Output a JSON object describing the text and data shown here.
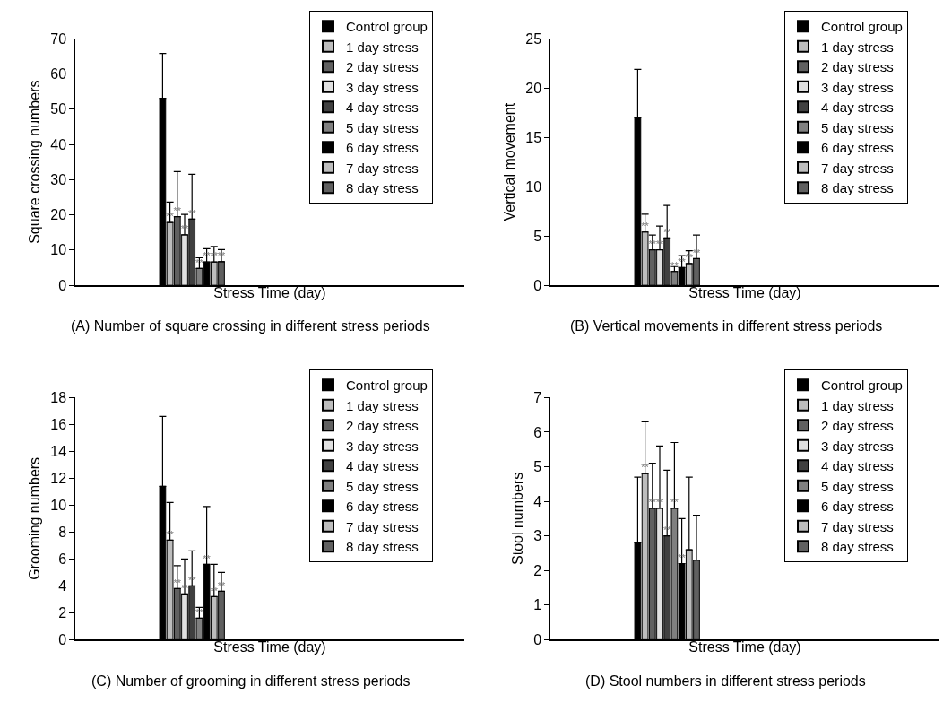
{
  "chart_data": [
    {
      "type": "bar",
      "title": "(A) Number of square crossing in different stress periods",
      "xlabel": "Stress Time (day)",
      "ylabel": "Square crossing numbers",
      "categories": [
        null
      ],
      "ylim": [
        0,
        70
      ],
      "yticks": [
        0,
        10,
        20,
        30,
        40,
        50,
        60,
        70
      ],
      "legend": "top right",
      "tick_labels": "y",
      "series": [
        {
          "name": "Control group",
          "color": "#000000",
          "values": [
            53.1
          ],
          "errors": [
            [
              53.1,
              65.8
            ]
          ],
          "value_labels": [
            null
          ]
        },
        {
          "name": "1 day stress",
          "color": "#bdbdbd",
          "values": [
            17.8
          ],
          "errors": [
            [
              17.8,
              23.6
            ]
          ],
          "value_labels": [
            "**"
          ]
        },
        {
          "name": "2 day stress",
          "color": "#606060",
          "values": [
            19.5
          ],
          "errors": [
            [
              19.5,
              32.3
            ]
          ],
          "value_labels": [
            "**"
          ]
        },
        {
          "name": "3 day stress",
          "color": "#e0e0e0",
          "values": [
            14.3
          ],
          "errors": [
            [
              14.3,
              20.1
            ]
          ],
          "value_labels": [
            "**"
          ]
        },
        {
          "name": "4 day stress",
          "color": "#404040",
          "values": [
            18.8
          ],
          "errors": [
            [
              18.8,
              31.5
            ]
          ],
          "value_labels": [
            "**"
          ]
        },
        {
          "name": "5 day stress",
          "color": "#808080",
          "values": [
            4.8
          ],
          "errors": [
            [
              4.8,
              7.8
            ]
          ],
          "value_labels": [
            "**"
          ]
        },
        {
          "name": "6 day stress",
          "color": "#000000",
          "values": [
            6.6
          ],
          "errors": [
            [
              6.6,
              10.4
            ]
          ],
          "value_labels": [
            "**"
          ]
        },
        {
          "name": "7 day stress",
          "color": "#bdbdbd",
          "values": [
            6.6
          ],
          "errors": [
            [
              6.6,
              11.0
            ]
          ],
          "value_labels": [
            "**"
          ]
        },
        {
          "name": "8 day stress",
          "color": "#606060",
          "values": [
            6.7
          ],
          "errors": [
            [
              6.7,
              10.1
            ]
          ],
          "value_labels": [
            "**"
          ]
        }
      ]
    },
    {
      "type": "bar",
      "title": "(B) Vertical movements in different stress periods",
      "xlabel": "Stress Time (day)",
      "ylabel": "Vertical movement",
      "categories": [
        null
      ],
      "ylim": [
        0,
        25
      ],
      "yticks": [
        0,
        5,
        10,
        15,
        20,
        25
      ],
      "legend": "top right",
      "tick_labels": "y",
      "series": [
        {
          "name": "Control group",
          "color": "#000000",
          "values": [
            17.0
          ],
          "errors": [
            [
              17.0,
              21.9
            ]
          ],
          "value_labels": [
            null
          ]
        },
        {
          "name": "1 day stress",
          "color": "#bdbdbd",
          "values": [
            5.4
          ],
          "errors": [
            [
              5.4,
              7.2
            ]
          ],
          "value_labels": [
            "**"
          ]
        },
        {
          "name": "2 day stress",
          "color": "#606060",
          "values": [
            3.6
          ],
          "errors": [
            [
              3.6,
              5.1
            ]
          ],
          "value_labels": [
            "**"
          ]
        },
        {
          "name": "3 day stress",
          "color": "#e0e0e0",
          "values": [
            3.6
          ],
          "errors": [
            [
              3.6,
              6.0
            ]
          ],
          "value_labels": [
            "**"
          ]
        },
        {
          "name": "4 day stress",
          "color": "#404040",
          "values": [
            4.8
          ],
          "errors": [
            [
              4.8,
              8.1
            ]
          ],
          "value_labels": [
            "**"
          ]
        },
        {
          "name": "5 day stress",
          "color": "#808080",
          "values": [
            1.4
          ],
          "errors": [
            [
              1.4,
              1.9
            ]
          ],
          "value_labels": [
            "**"
          ]
        },
        {
          "name": "6 day stress",
          "color": "#000000",
          "values": [
            1.8
          ],
          "errors": [
            [
              1.8,
              3.0
            ]
          ],
          "value_labels": [
            "**"
          ]
        },
        {
          "name": "7 day stress",
          "color": "#bdbdbd",
          "values": [
            2.2
          ],
          "errors": [
            [
              2.2,
              3.5
            ]
          ],
          "value_labels": [
            "**"
          ]
        },
        {
          "name": "8 day stress",
          "color": "#606060",
          "values": [
            2.7
          ],
          "errors": [
            [
              2.7,
              5.1
            ]
          ],
          "value_labels": [
            "**"
          ]
        }
      ]
    },
    {
      "type": "bar",
      "title": "(C) Number of grooming in different stress periods",
      "xlabel": "Stress Time (day)",
      "ylabel": "Grooming numbers",
      "categories": [
        null
      ],
      "ylim": [
        0,
        18
      ],
      "yticks": [
        0,
        2,
        4,
        6,
        8,
        10,
        12,
        14,
        16,
        18
      ],
      "legend": "top right",
      "tick_labels": "y",
      "series": [
        {
          "name": "Control group",
          "color": "#000000",
          "values": [
            11.4
          ],
          "errors": [
            [
              11.4,
              16.6
            ]
          ],
          "value_labels": [
            null
          ]
        },
        {
          "name": "1 day stress",
          "color": "#bdbdbd",
          "values": [
            7.4
          ],
          "errors": [
            [
              7.4,
              10.2
            ]
          ],
          "value_labels": [
            "**"
          ]
        },
        {
          "name": "2 day stress",
          "color": "#606060",
          "values": [
            3.8
          ],
          "errors": [
            [
              3.8,
              5.5
            ]
          ],
          "value_labels": [
            "**"
          ]
        },
        {
          "name": "3 day stress",
          "color": "#e0e0e0",
          "values": [
            3.4
          ],
          "errors": [
            [
              3.4,
              6.0
            ]
          ],
          "value_labels": [
            "**"
          ]
        },
        {
          "name": "4 day stress",
          "color": "#404040",
          "values": [
            4.0
          ],
          "errors": [
            [
              4.0,
              6.6
            ]
          ],
          "value_labels": [
            "**"
          ]
        },
        {
          "name": "5 day stress",
          "color": "#808080",
          "values": [
            1.6
          ],
          "errors": [
            [
              1.6,
              2.4
            ]
          ],
          "value_labels": [
            "**"
          ]
        },
        {
          "name": "6 day stress",
          "color": "#000000",
          "values": [
            5.6
          ],
          "errors": [
            [
              5.6,
              9.9
            ]
          ],
          "value_labels": [
            "**"
          ]
        },
        {
          "name": "7 day stress",
          "color": "#bdbdbd",
          "values": [
            3.2
          ],
          "errors": [
            [
              3.2,
              5.6
            ]
          ],
          "value_labels": [
            "**"
          ]
        },
        {
          "name": "8 day stress",
          "color": "#606060",
          "values": [
            3.6
          ],
          "errors": [
            [
              3.6,
              5.0
            ]
          ],
          "value_labels": [
            "**"
          ]
        }
      ]
    },
    {
      "type": "bar",
      "title": "(D) Stool numbers in different stress periods",
      "xlabel": "Stress Time (day)",
      "ylabel": "Stool numbers",
      "categories": [
        null
      ],
      "ylim": [
        0,
        7
      ],
      "yticks": [
        0,
        1,
        2,
        3,
        4,
        5,
        6,
        7
      ],
      "legend": "top right",
      "tick_labels": "y",
      "series": [
        {
          "name": "Control group",
          "color": "#000000",
          "values": [
            2.8
          ],
          "errors": [
            [
              2.8,
              4.7
            ]
          ],
          "value_labels": [
            null
          ]
        },
        {
          "name": "1 day stress",
          "color": "#bdbdbd",
          "values": [
            4.8
          ],
          "errors": [
            [
              4.8,
              6.3
            ]
          ],
          "value_labels": [
            "**"
          ]
        },
        {
          "name": "2 day stress",
          "color": "#606060",
          "values": [
            3.8
          ],
          "errors": [
            [
              3.8,
              5.1
            ]
          ],
          "value_labels": [
            "**"
          ]
        },
        {
          "name": "3 day stress",
          "color": "#e0e0e0",
          "values": [
            3.8
          ],
          "errors": [
            [
              3.8,
              5.6
            ]
          ],
          "value_labels": [
            "**"
          ]
        },
        {
          "name": "4 day stress",
          "color": "#404040",
          "values": [
            3.0
          ],
          "errors": [
            [
              3.0,
              4.9
            ]
          ],
          "value_labels": [
            "**"
          ]
        },
        {
          "name": "5 day stress",
          "color": "#808080",
          "values": [
            3.8
          ],
          "errors": [
            [
              3.8,
              5.7
            ]
          ],
          "value_labels": [
            "**"
          ]
        },
        {
          "name": "6 day stress",
          "color": "#000000",
          "values": [
            2.2
          ],
          "errors": [
            [
              2.2,
              3.5
            ]
          ],
          "value_labels": [
            "**"
          ]
        },
        {
          "name": "7 day stress",
          "color": "#bdbdbd",
          "values": [
            2.6
          ],
          "errors": [
            [
              2.6,
              4.7
            ]
          ],
          "value_labels": [
            null
          ]
        },
        {
          "name": "8 day stress",
          "color": "#606060",
          "values": [
            2.3
          ],
          "errors": [
            [
              2.3,
              3.6
            ]
          ],
          "value_labels": [
            null
          ]
        }
      ]
    }
  ]
}
